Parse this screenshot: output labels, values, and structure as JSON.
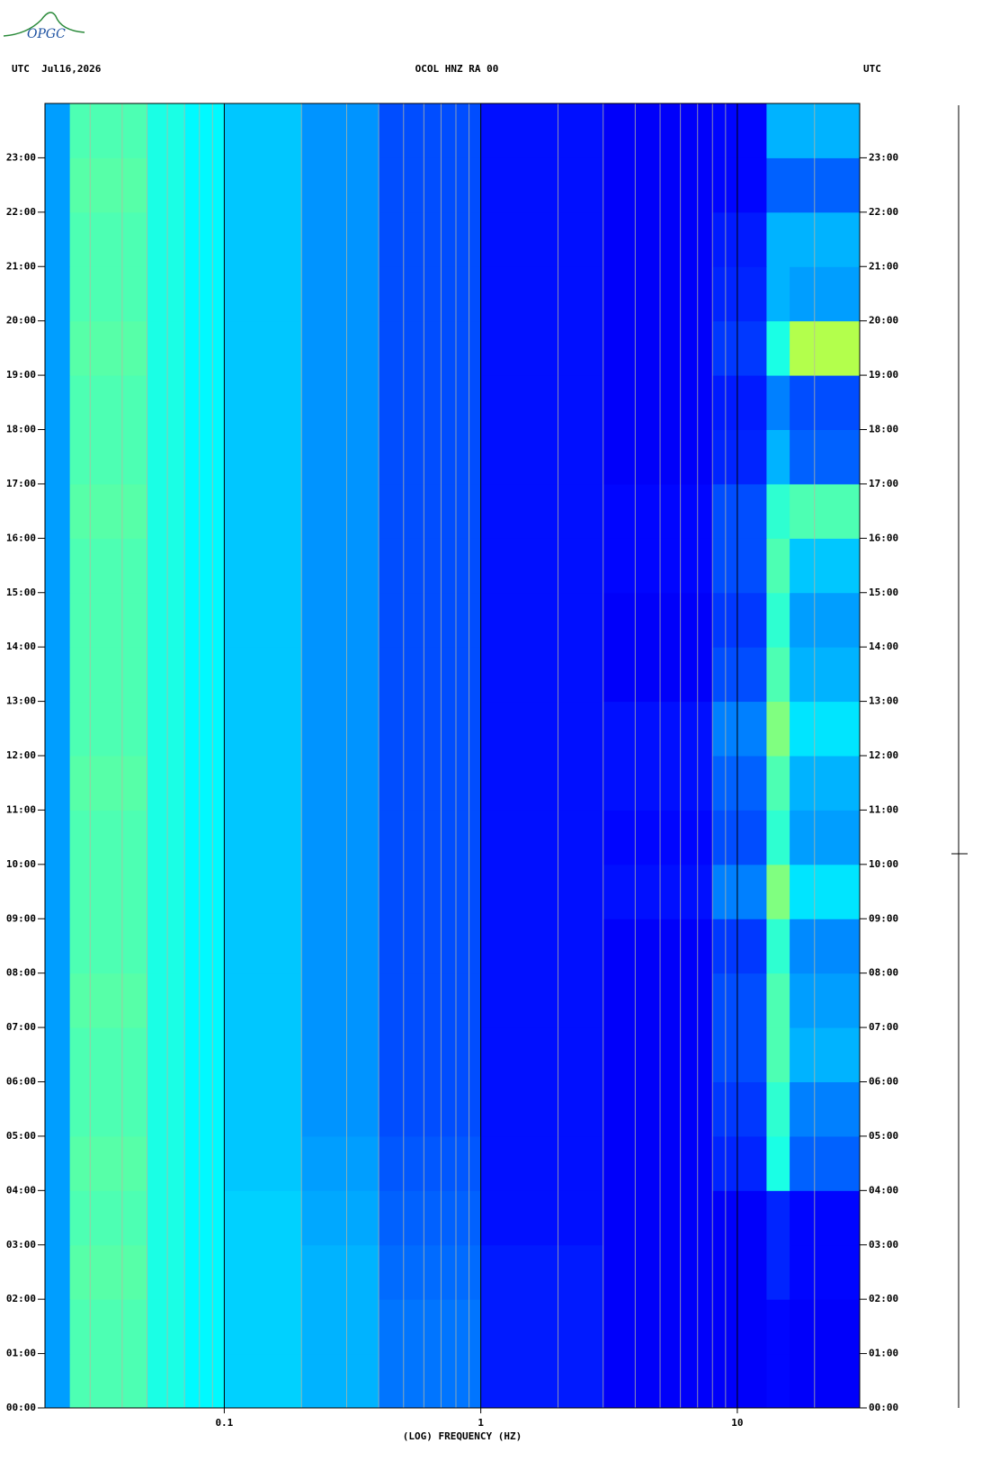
{
  "chart_data": {
    "type": "heatmap",
    "logo": "OPGC",
    "left_header": "UTC  Jul16,2026",
    "title": "OCOL HNZ RA 00",
    "right_header": "UTC",
    "x_label": "(LOG) FREQUENCY (HZ)",
    "x_log": true,
    "colormap": "jet",
    "zlim": [
      0,
      1
    ],
    "xlim": [
      0.02,
      30
    ],
    "xticks": [
      0.1,
      1,
      10
    ],
    "xminorticks": [
      0.03,
      0.04,
      0.05,
      0.06,
      0.07,
      0.08,
      0.09,
      0.2,
      0.3,
      0.4,
      0.5,
      0.6,
      0.7,
      0.8,
      0.9,
      2,
      3,
      4,
      5,
      6,
      7,
      8,
      9,
      20,
      30
    ],
    "ylim": [
      0,
      24
    ],
    "yticks": [
      {
        "value": 0,
        "label": "00:00"
      },
      {
        "value": 1,
        "label": "01:00"
      },
      {
        "value": 2,
        "label": "02:00"
      },
      {
        "value": 3,
        "label": "03:00"
      },
      {
        "value": 4,
        "label": "04:00"
      },
      {
        "value": 5,
        "label": "05:00"
      },
      {
        "value": 6,
        "label": "06:00"
      },
      {
        "value": 7,
        "label": "07:00"
      },
      {
        "value": 8,
        "label": "08:00"
      },
      {
        "value": 9,
        "label": "09:00"
      },
      {
        "value": 10,
        "label": "10:00"
      },
      {
        "value": 11,
        "label": "11:00"
      },
      {
        "value": 12,
        "label": "12:00"
      },
      {
        "value": 13,
        "label": "13:00"
      },
      {
        "value": 14,
        "label": "14:00"
      },
      {
        "value": 15,
        "label": "15:00"
      },
      {
        "value": 16,
        "label": "16:00"
      },
      {
        "value": 17,
        "label": "17:00"
      },
      {
        "value": 18,
        "label": "18:00"
      },
      {
        "value": 19,
        "label": "19:00"
      },
      {
        "value": 20,
        "label": "20:00"
      },
      {
        "value": 21,
        "label": "21:00"
      },
      {
        "value": 22,
        "label": "22:00"
      },
      {
        "value": 23,
        "label": "23:00"
      }
    ],
    "x_edges": [
      0.02,
      0.025,
      0.05,
      0.07,
      0.1,
      0.2,
      0.4,
      1,
      3,
      8,
      13,
      16,
      30
    ],
    "y_edges": [
      0,
      1,
      2,
      3,
      4,
      5,
      6,
      7,
      8,
      9,
      10,
      11,
      12,
      13,
      14,
      15,
      16,
      17,
      18,
      19,
      20,
      21,
      22,
      23,
      24
    ],
    "z": [
      [
        0.28,
        0.45,
        0.4,
        0.37,
        0.33,
        0.3,
        0.24,
        0.15,
        0.12,
        0.12,
        0.13,
        0.12
      ],
      [
        0.28,
        0.45,
        0.4,
        0.37,
        0.33,
        0.3,
        0.24,
        0.15,
        0.12,
        0.12,
        0.13,
        0.12
      ],
      [
        0.28,
        0.46,
        0.4,
        0.37,
        0.33,
        0.3,
        0.23,
        0.15,
        0.12,
        0.12,
        0.16,
        0.13
      ],
      [
        0.28,
        0.45,
        0.4,
        0.37,
        0.33,
        0.29,
        0.22,
        0.14,
        0.12,
        0.12,
        0.16,
        0.13
      ],
      [
        0.28,
        0.46,
        0.4,
        0.37,
        0.32,
        0.28,
        0.21,
        0.14,
        0.12,
        0.16,
        0.4,
        0.22
      ],
      [
        0.28,
        0.45,
        0.4,
        0.37,
        0.32,
        0.27,
        0.2,
        0.14,
        0.12,
        0.18,
        0.42,
        0.25
      ],
      [
        0.28,
        0.45,
        0.4,
        0.37,
        0.32,
        0.27,
        0.2,
        0.14,
        0.12,
        0.2,
        0.45,
        0.3
      ],
      [
        0.28,
        0.46,
        0.4,
        0.37,
        0.32,
        0.27,
        0.2,
        0.14,
        0.12,
        0.2,
        0.45,
        0.28
      ],
      [
        0.28,
        0.45,
        0.4,
        0.37,
        0.32,
        0.27,
        0.2,
        0.14,
        0.12,
        0.18,
        0.42,
        0.26
      ],
      [
        0.28,
        0.45,
        0.4,
        0.37,
        0.32,
        0.27,
        0.2,
        0.14,
        0.14,
        0.25,
        0.5,
        0.35
      ],
      [
        0.28,
        0.45,
        0.4,
        0.37,
        0.32,
        0.27,
        0.2,
        0.14,
        0.13,
        0.2,
        0.42,
        0.28
      ],
      [
        0.28,
        0.46,
        0.4,
        0.37,
        0.32,
        0.27,
        0.2,
        0.14,
        0.14,
        0.22,
        0.45,
        0.3
      ],
      [
        0.28,
        0.45,
        0.4,
        0.37,
        0.32,
        0.27,
        0.2,
        0.14,
        0.14,
        0.25,
        0.5,
        0.35
      ],
      [
        0.28,
        0.45,
        0.4,
        0.37,
        0.32,
        0.27,
        0.2,
        0.14,
        0.12,
        0.2,
        0.45,
        0.3
      ],
      [
        0.28,
        0.45,
        0.4,
        0.37,
        0.32,
        0.27,
        0.2,
        0.14,
        0.12,
        0.18,
        0.42,
        0.28
      ],
      [
        0.28,
        0.45,
        0.4,
        0.37,
        0.32,
        0.27,
        0.2,
        0.14,
        0.13,
        0.2,
        0.45,
        0.32
      ],
      [
        0.28,
        0.46,
        0.4,
        0.37,
        0.32,
        0.27,
        0.2,
        0.14,
        0.13,
        0.2,
        0.42,
        0.45
      ],
      [
        0.28,
        0.45,
        0.4,
        0.37,
        0.32,
        0.27,
        0.2,
        0.14,
        0.12,
        0.16,
        0.3,
        0.22
      ],
      [
        0.28,
        0.45,
        0.4,
        0.37,
        0.32,
        0.27,
        0.2,
        0.14,
        0.12,
        0.15,
        0.25,
        0.2
      ],
      [
        0.28,
        0.46,
        0.4,
        0.37,
        0.32,
        0.27,
        0.2,
        0.14,
        0.12,
        0.18,
        0.4,
        0.55
      ],
      [
        0.28,
        0.45,
        0.4,
        0.37,
        0.32,
        0.27,
        0.2,
        0.14,
        0.12,
        0.16,
        0.3,
        0.28
      ],
      [
        0.28,
        0.45,
        0.4,
        0.37,
        0.32,
        0.27,
        0.2,
        0.14,
        0.12,
        0.15,
        0.3,
        0.3
      ],
      [
        0.28,
        0.46,
        0.4,
        0.37,
        0.32,
        0.27,
        0.2,
        0.14,
        0.12,
        0.13,
        0.22,
        0.22
      ],
      [
        0.28,
        0.45,
        0.4,
        0.37,
        0.32,
        0.27,
        0.2,
        0.14,
        0.12,
        0.13,
        0.3,
        0.3
      ]
    ]
  }
}
